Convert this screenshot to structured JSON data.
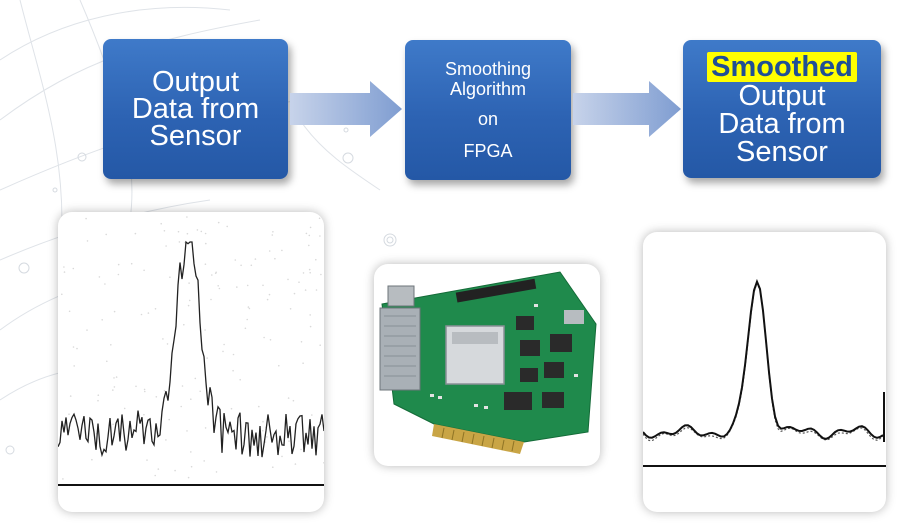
{
  "flow": {
    "step1": {
      "lines": [
        "Output",
        "Data from",
        "Sensor"
      ]
    },
    "step2": {
      "lines": [
        "Smoothing",
        "Algorithm",
        "on",
        "FPGA"
      ]
    },
    "step3": {
      "highlight": "Smoothed",
      "lines": [
        "Output",
        "Data from",
        "Sensor"
      ]
    }
  },
  "colors": {
    "box": "#2d63b3",
    "arrow": "#8faad8",
    "highlight": "#ffff00",
    "highlight_text": "#1f4f96",
    "board_pcb": "#1f8a4c"
  },
  "images": {
    "raw_signal": "noisy-signal-plot",
    "fpga_board": "fpga-board-photo",
    "smoothed_signal": "smoothed-signal-plot"
  }
}
